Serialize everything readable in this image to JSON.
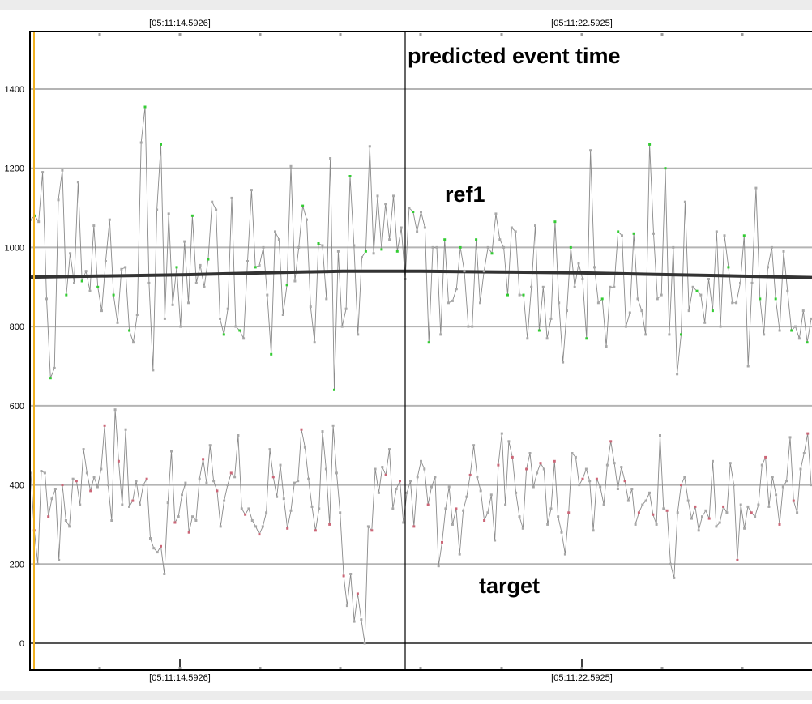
{
  "chart_data": {
    "type": "line",
    "time_labels": {
      "top": [
        "[05:11:14.5926]",
        "[05:11:22.5925]"
      ],
      "bottom": [
        "[05:11:14.5926]",
        "[05:11:22.5925]"
      ]
    },
    "y_ticks": [
      0,
      200,
      400,
      600,
      800,
      1000,
      1200,
      1400
    ],
    "ylim": [
      -70,
      1560
    ],
    "grid": true,
    "annotations": {
      "event_label": "predicted event time",
      "ref_label": "ref1",
      "target_label": "target"
    },
    "colors": {
      "series_line": "#8a8a8a",
      "ref_markers": "#33cc33",
      "target_markers": "#cc6677",
      "mean_line": "#333333",
      "event_line": "#000000",
      "start_marker": "#f0b020",
      "grid": "#b4b4b4",
      "frame": "#000000",
      "outer_background": "#ececec"
    },
    "series": [
      {
        "name": "ref1",
        "values": [
          1070,
          1080,
          1065,
          1190,
          870,
          670,
          695,
          1120,
          1195,
          880,
          985,
          910,
          1165,
          915,
          940,
          890,
          1055,
          900,
          840,
          965,
          1070,
          880,
          810,
          945,
          950,
          790,
          760,
          830,
          1265,
          1355,
          910,
          690,
          1095,
          1260,
          820,
          1085,
          855,
          950,
          800,
          1015,
          860,
          1080,
          910,
          955,
          900,
          970,
          1115,
          1095,
          820,
          780,
          845,
          1125,
          800,
          790,
          770,
          965,
          1145,
          950,
          955,
          1000,
          880,
          730,
          1040,
          1020,
          830,
          905,
          1205,
          915,
          1000,
          1105,
          1070,
          850,
          760,
          1010,
          1005,
          870,
          1225,
          640,
          990,
          800,
          845,
          1180,
          1005,
          780,
          975,
          990,
          1255,
          985,
          1130,
          995,
          1110,
          1020,
          1130,
          990,
          1050,
          920,
          1100,
          1090,
          1040,
          1090,
          1050,
          760,
          1000,
          1000,
          780,
          1020,
          860,
          865,
          895,
          1000,
          940,
          800,
          800,
          1020,
          860,
          940,
          1000,
          985,
          1085,
          1020,
          1000,
          880,
          1050,
          1040,
          880,
          880,
          770,
          900,
          1055,
          790,
          900,
          770,
          820,
          1065,
          860,
          710,
          840,
          1000,
          900,
          960,
          920,
          770,
          1245,
          950,
          860,
          870,
          750,
          900,
          900,
          1040,
          1030,
          800,
          835,
          1035,
          870,
          840,
          780,
          1260,
          1035,
          870,
          880,
          1200,
          780,
          1000,
          680,
          780,
          1115,
          840,
          900,
          890,
          880,
          810,
          920,
          840,
          1040,
          800,
          1030,
          950,
          860,
          860,
          910,
          1030,
          700,
          910,
          1150,
          870,
          780,
          950,
          1000,
          870,
          790,
          990,
          890,
          790,
          800,
          770,
          840,
          760,
          820
        ]
      },
      {
        "name": "target",
        "values": [
          430,
          285,
          200,
          435,
          430,
          320,
          365,
          390,
          210,
          400,
          310,
          295,
          415,
          410,
          350,
          490,
          430,
          385,
          420,
          395,
          440,
          550,
          400,
          310,
          590,
          460,
          350,
          540,
          345,
          360,
          410,
          350,
          400,
          415,
          265,
          240,
          230,
          245,
          175,
          355,
          485,
          305,
          320,
          375,
          405,
          280,
          320,
          310,
          415,
          465,
          405,
          500,
          410,
          385,
          295,
          360,
          400,
          430,
          420,
          525,
          340,
          325,
          340,
          310,
          295,
          275,
          295,
          330,
          490,
          420,
          370,
          450,
          365,
          290,
          335,
          405,
          410,
          540,
          495,
          415,
          345,
          285,
          340,
          535,
          440,
          300,
          550,
          430,
          330,
          170,
          95,
          175,
          55,
          125,
          60,
          0,
          295,
          285,
          440,
          380,
          445,
          425,
          490,
          340,
          390,
          410,
          305,
          380,
          410,
          295,
          420,
          460,
          440,
          350,
          395,
          420,
          195,
          255,
          340,
          395,
          300,
          340,
          225,
          335,
          370,
          425,
          500,
          420,
          385,
          310,
          330,
          375,
          260,
          450,
          530,
          350,
          510,
          470,
          380,
          320,
          290,
          440,
          480,
          395,
          430,
          455,
          440,
          300,
          340,
          460,
          320,
          280,
          225,
          330,
          480,
          470,
          400,
          415,
          440,
          410,
          285,
          415,
          395,
          350,
          450,
          510,
          455,
          390,
          445,
          410,
          360,
          390,
          300,
          330,
          350,
          360,
          380,
          325,
          300,
          525,
          340,
          335,
          200,
          165,
          330,
          400,
          420,
          360,
          315,
          345,
          285,
          320,
          335,
          315,
          460,
          295,
          305,
          345,
          330,
          455,
          400,
          210,
          350,
          290,
          345,
          330,
          320,
          350,
          450,
          470,
          345,
          420,
          375,
          300,
          395,
          410,
          520,
          360,
          330,
          440,
          480,
          530,
          400
        ]
      },
      {
        "name": "mean",
        "values": [
          925,
          928,
          931,
          936,
          940,
          940,
          938,
          936,
          932,
          928,
          924
        ]
      }
    ]
  }
}
